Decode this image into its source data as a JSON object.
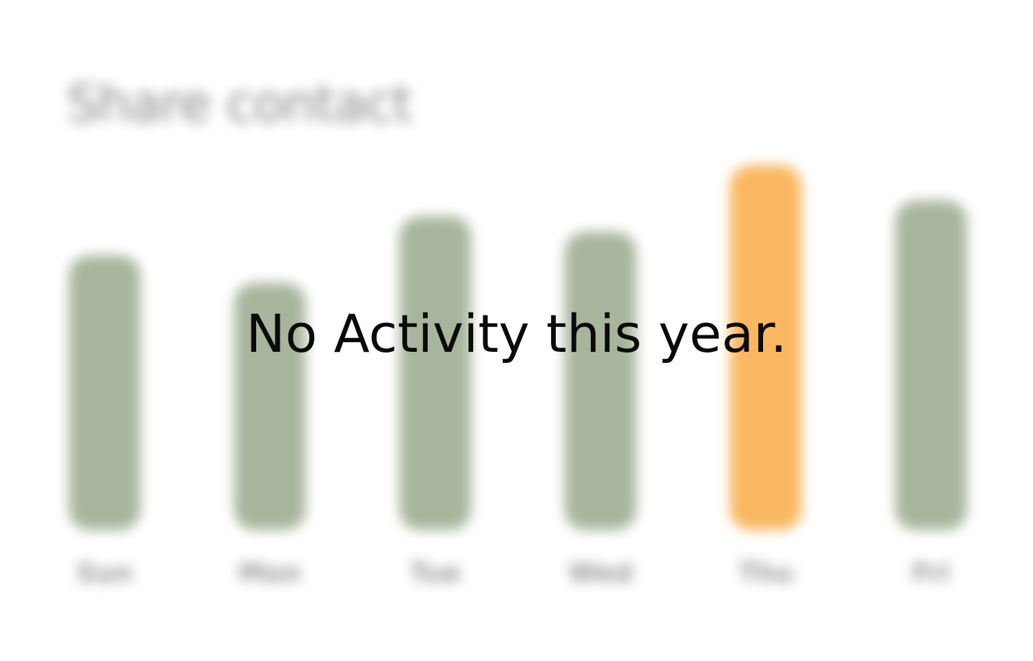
{
  "overlay": {
    "message": "No Activity this year."
  },
  "chart_data": {
    "type": "bar",
    "title": "Share contact",
    "categories": [
      "Sun",
      "Mon",
      "Tue",
      "Wed",
      "Thu",
      "Fri"
    ],
    "values": [
      70,
      63,
      80,
      76,
      93,
      84
    ],
    "ylim": [
      0,
      100
    ],
    "grid": false,
    "highlight_index": 4,
    "colors": {
      "bar": "#a8b59d",
      "highlight": "#fab761",
      "label": "#9a9a9a"
    }
  }
}
